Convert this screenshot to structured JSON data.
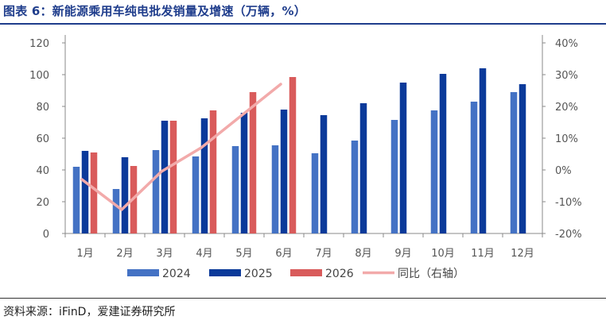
{
  "header": {
    "title": "图表 6：新能源乘用车纯电批发销量及增速（万辆，%）"
  },
  "footer": {
    "source": "资料来源：iFinD，爱建证券研究所"
  },
  "colors": {
    "s2024": "#4472c4",
    "s2025": "#0b3a9a",
    "s2026": "#d95b5b",
    "yoy": "#f2aaaa",
    "title": "#1f3d8c"
  },
  "chart_data": {
    "type": "bar",
    "title": "新能源乘用车纯电批发销量及增速（万辆，%）",
    "categories": [
      "1月",
      "2月",
      "3月",
      "4月",
      "5月",
      "6月",
      "7月",
      "8月",
      "9月",
      "10月",
      "11月",
      "12月"
    ],
    "series": [
      {
        "name": "2024",
        "type": "bar",
        "axis": "left",
        "values": [
          42,
          28,
          52.5,
          48.5,
          55,
          55.5,
          50.5,
          58.5,
          71.5,
          77.5,
          83,
          89
        ]
      },
      {
        "name": "2025",
        "type": "bar",
        "axis": "left",
        "values": [
          52,
          48,
          71,
          72.5,
          76,
          78,
          74.5,
          82,
          95,
          100.5,
          104,
          94
        ]
      },
      {
        "name": "2026",
        "type": "bar",
        "axis": "left",
        "values": [
          51,
          42.5,
          71,
          77.5,
          89,
          98.5,
          null,
          null,
          null,
          null,
          null,
          null
        ]
      },
      {
        "name": "同比（右轴）",
        "type": "line",
        "axis": "right",
        "values": [
          -3,
          -12.5,
          -0.5,
          7,
          17,
          27,
          null,
          null,
          null,
          null,
          null,
          null
        ]
      }
    ],
    "y_left": {
      "ylim": [
        0,
        120
      ],
      "ticks": [
        "0",
        "20",
        "40",
        "60",
        "80",
        "100",
        "120"
      ]
    },
    "y_right": {
      "ylim": [
        -20,
        40
      ],
      "ticks": [
        "-20%",
        "-10%",
        "0%",
        "10%",
        "20%",
        "30%",
        "40%"
      ]
    },
    "grid": false,
    "legend_position": "bottom"
  }
}
